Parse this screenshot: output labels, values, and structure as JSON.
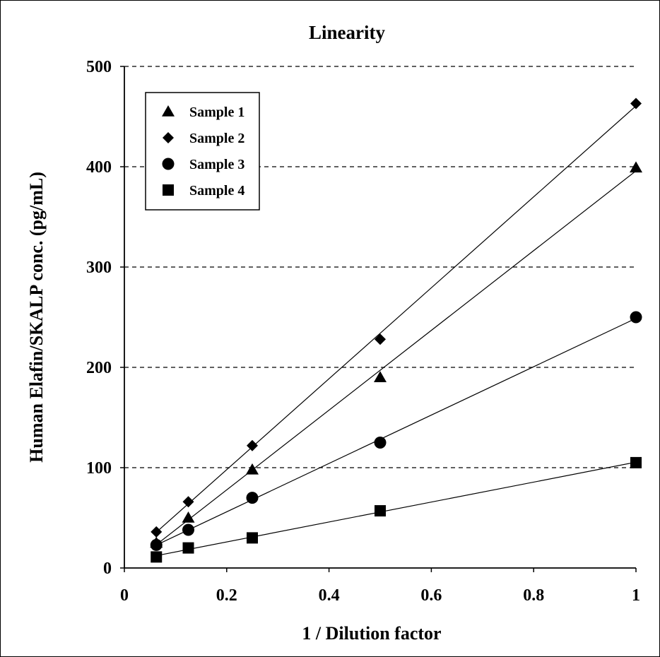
{
  "chart_data": {
    "type": "scatter",
    "title": "Linearity",
    "xlabel": "1 / Dilution factor",
    "ylabel": "Human Elafin/SKALP conc. (pg/mL)",
    "xlim": [
      0,
      1
    ],
    "ylim": [
      0,
      500
    ],
    "x_ticks": [
      "0",
      "0.2",
      "0.4",
      "0.6",
      "0.8",
      "1"
    ],
    "y_ticks": [
      "0",
      "100",
      "200",
      "300",
      "400",
      "500"
    ],
    "grid": "horizontal dashed",
    "legend_position": "top-left",
    "trendlines": "linear",
    "x": [
      0.0625,
      0.125,
      0.25,
      0.5,
      1
    ],
    "series": [
      {
        "name": "Sample 1",
        "marker": "triangle",
        "values": [
          25,
          50,
          98,
          190,
          399
        ]
      },
      {
        "name": "Sample 2",
        "marker": "diamond",
        "values": [
          36,
          66,
          122,
          228,
          463
        ]
      },
      {
        "name": "Sample 3",
        "marker": "circle",
        "values": [
          23,
          38,
          70,
          125,
          250
        ]
      },
      {
        "name": "Sample 4",
        "marker": "square",
        "values": [
          11,
          20,
          30,
          57,
          105
        ]
      }
    ]
  }
}
